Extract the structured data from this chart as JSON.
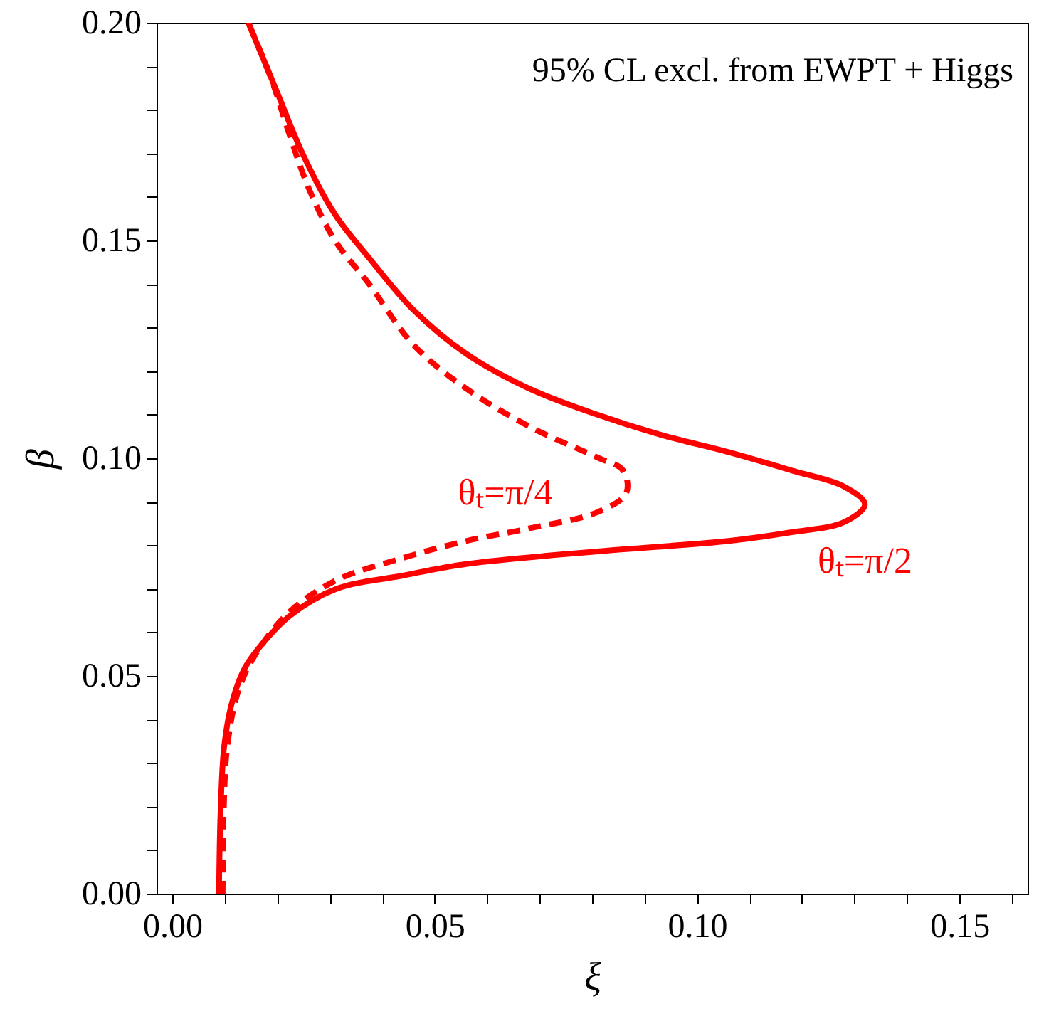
{
  "chart_data": {
    "type": "line",
    "xlabel": "ξ",
    "ylabel": "β",
    "annotations": [
      "95% CL excl. from EWPT + Higgs"
    ],
    "xlim": [
      -0.003,
      0.163
    ],
    "ylim": [
      0,
      0.2
    ],
    "xticks": [
      {
        "value": 0,
        "label": "0.00"
      },
      {
        "value": 0.01,
        "label": null
      },
      {
        "value": 0.02,
        "label": null
      },
      {
        "value": 0.03,
        "label": null
      },
      {
        "value": 0.04,
        "label": null
      },
      {
        "value": 0.05,
        "label": "0.05"
      },
      {
        "value": 0.06,
        "label": null
      },
      {
        "value": 0.07,
        "label": null
      },
      {
        "value": 0.08,
        "label": null
      },
      {
        "value": 0.09,
        "label": null
      },
      {
        "value": 0.1,
        "label": "0.10"
      },
      {
        "value": 0.11,
        "label": null
      },
      {
        "value": 0.12,
        "label": null
      },
      {
        "value": 0.13,
        "label": null
      },
      {
        "value": 0.14,
        "label": null
      },
      {
        "value": 0.15,
        "label": "0.15"
      },
      {
        "value": 0.16,
        "label": null
      }
    ],
    "yticks": [
      {
        "value": 0,
        "label": "0.00"
      },
      {
        "value": 0.01,
        "label": null
      },
      {
        "value": 0.02,
        "label": null
      },
      {
        "value": 0.03,
        "label": null
      },
      {
        "value": 0.04,
        "label": null
      },
      {
        "value": 0.05,
        "label": "0.05"
      },
      {
        "value": 0.06,
        "label": null
      },
      {
        "value": 0.07,
        "label": null
      },
      {
        "value": 0.08,
        "label": null
      },
      {
        "value": 0.09,
        "label": null
      },
      {
        "value": 0.1,
        "label": "0.10"
      },
      {
        "value": 0.11,
        "label": null
      },
      {
        "value": 0.12,
        "label": null
      },
      {
        "value": 0.13,
        "label": null
      },
      {
        "value": 0.14,
        "label": null
      },
      {
        "value": 0.15,
        "label": "0.15"
      },
      {
        "value": 0.16,
        "label": null
      },
      {
        "value": 0.17,
        "label": null
      },
      {
        "value": 0.18,
        "label": null
      },
      {
        "value": 0.19,
        "label": null
      },
      {
        "value": 0.2,
        "label": "0.20"
      }
    ],
    "grid": false,
    "series": [
      {
        "name": "θₜ=π/2",
        "color": "#ff0000",
        "line_style": "solid",
        "x": [
          0.0089,
          0.0092,
          0.0099,
          0.0114,
          0.0139,
          0.0176,
          0.0226,
          0.0313,
          0.0437,
          0.056,
          0.081,
          0.106,
          0.118,
          0.128,
          0.132,
          0.128,
          0.118,
          0.106,
          0.093,
          0.081,
          0.068,
          0.056,
          0.046,
          0.0375,
          0.031,
          0.025,
          0.02,
          0.0145
        ],
        "values": [
          0,
          0.019,
          0.034,
          0.044,
          0.052,
          0.058,
          0.064,
          0.07,
          0.073,
          0.0757,
          0.0786,
          0.081,
          0.083,
          0.0853,
          0.0894,
          0.0935,
          0.0972,
          0.1014,
          0.1054,
          0.11,
          0.116,
          0.124,
          0.134,
          0.146,
          0.156,
          0.1695,
          0.184,
          0.2
        ]
      },
      {
        "name": "θₜ=π/4",
        "color": "#ff0000",
        "line_style": "dashed",
        "x": [
          0.0096,
          0.0098,
          0.0105,
          0.0127,
          0.0164,
          0.0226,
          0.0313,
          0.0437,
          0.056,
          0.0685,
          0.081,
          0.0865,
          0.0859,
          0.081,
          0.0685,
          0.056,
          0.046,
          0.0375,
          0.031,
          0.026,
          0.022,
          0.0189,
          0.0145
        ],
        "values": [
          0,
          0.019,
          0.034,
          0.047,
          0.056,
          0.065,
          0.072,
          0.077,
          0.081,
          0.084,
          0.0876,
          0.092,
          0.0972,
          0.1002,
          0.107,
          0.116,
          0.126,
          0.14,
          0.15,
          0.162,
          0.1755,
          0.187,
          0.2
        ]
      }
    ]
  }
}
